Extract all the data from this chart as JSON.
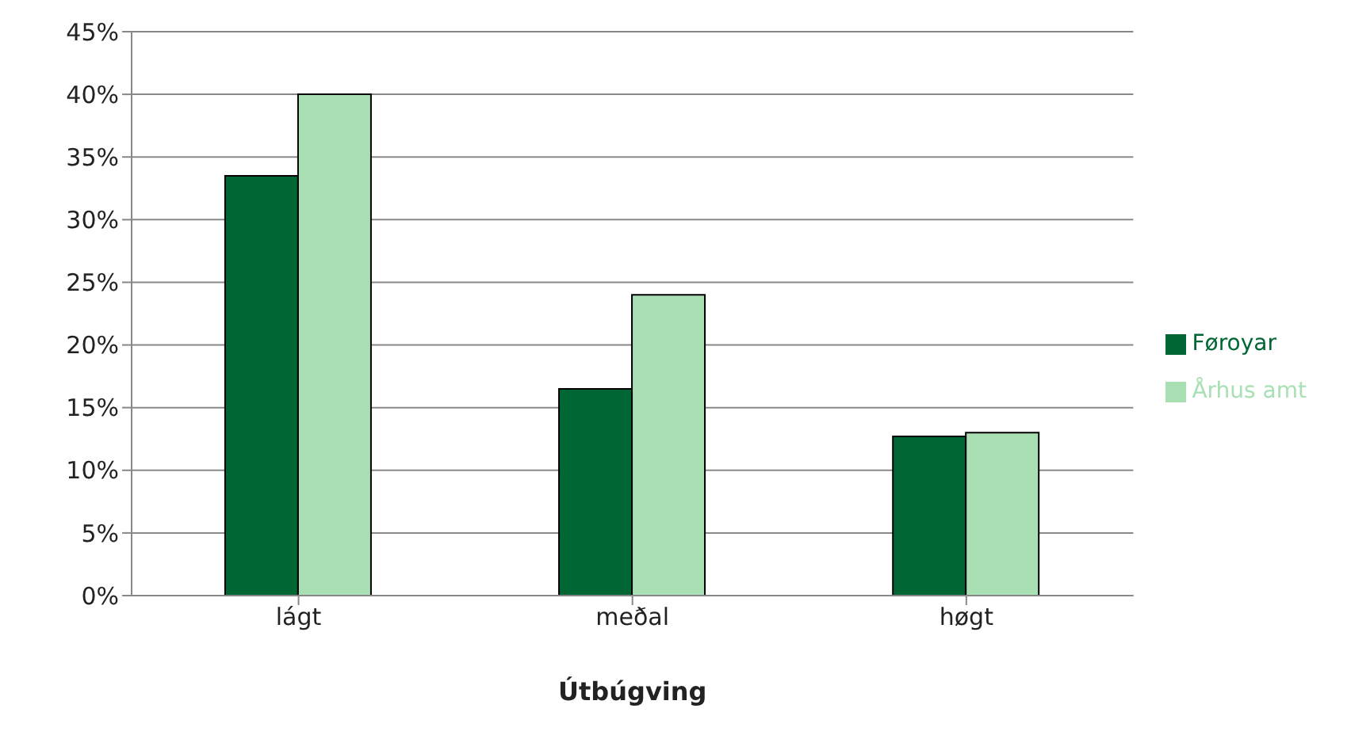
{
  "chart_data": {
    "type": "bar",
    "xlabel": "Útbúgving",
    "categories": [
      "lágt",
      "meðal",
      "høgt"
    ],
    "series": [
      {
        "name": "Føroyar",
        "color": "#006633",
        "values": [
          33.5,
          16.5,
          12.7
        ]
      },
      {
        "name": "Århus amt",
        "color": "#a8e0b4",
        "values": [
          40,
          24,
          13
        ]
      }
    ],
    "ylim": [
      0,
      45
    ],
    "yticks": [
      {
        "value": 0,
        "label": "0%"
      },
      {
        "value": 5,
        "label": "5%"
      },
      {
        "value": 10,
        "label": "10%"
      },
      {
        "value": 15,
        "label": "15%"
      },
      {
        "value": 20,
        "label": "20%"
      },
      {
        "value": 25,
        "label": "25%"
      },
      {
        "value": 30,
        "label": "30%"
      },
      {
        "value": 35,
        "label": "35%"
      },
      {
        "value": 40,
        "label": "40%"
      },
      {
        "value": 45,
        "label": "45%"
      }
    ],
    "grid": "y",
    "legend": "right"
  }
}
